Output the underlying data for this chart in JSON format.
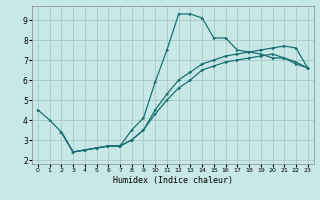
{
  "title": "",
  "xlabel": "Humidex (Indice chaleur)",
  "ylabel": "",
  "background_color": "#c8e8e8",
  "grid_color": "#a8c8c8",
  "line_color": "#1a7070",
  "xlim": [
    -0.5,
    23.5
  ],
  "ylim": [
    1.8,
    9.7
  ],
  "xticks": [
    0,
    1,
    2,
    3,
    4,
    5,
    6,
    7,
    8,
    9,
    10,
    11,
    12,
    13,
    14,
    15,
    16,
    17,
    18,
    19,
    20,
    21,
    22,
    23
  ],
  "yticks": [
    2,
    3,
    4,
    5,
    6,
    7,
    8,
    9
  ],
  "line1_x": [
    0,
    1,
    2,
    3,
    4,
    5,
    6,
    7,
    8,
    9,
    10,
    11,
    12,
    13,
    14,
    15,
    16,
    17,
    18,
    19,
    20,
    21,
    22,
    23
  ],
  "line1_y": [
    4.5,
    4.0,
    3.4,
    2.4,
    2.5,
    2.6,
    2.7,
    2.7,
    3.5,
    4.1,
    5.9,
    7.5,
    9.3,
    9.3,
    9.1,
    8.1,
    8.1,
    7.5,
    7.4,
    7.3,
    7.1,
    7.1,
    6.9,
    6.6
  ],
  "line2_x": [
    2,
    3,
    4,
    5,
    6,
    7,
    8,
    9,
    10,
    11,
    12,
    13,
    14,
    15,
    16,
    17,
    18,
    19,
    20,
    21,
    22,
    23
  ],
  "line2_y": [
    3.4,
    2.4,
    2.5,
    2.6,
    2.7,
    2.7,
    3.0,
    3.5,
    4.5,
    5.3,
    6.0,
    6.4,
    6.8,
    7.0,
    7.2,
    7.3,
    7.4,
    7.5,
    7.6,
    7.7,
    7.6,
    6.6
  ],
  "line3_x": [
    2,
    3,
    4,
    5,
    6,
    7,
    8,
    9,
    10,
    11,
    12,
    13,
    14,
    15,
    16,
    17,
    18,
    19,
    20,
    21,
    22,
    23
  ],
  "line3_y": [
    3.4,
    2.4,
    2.5,
    2.6,
    2.7,
    2.7,
    3.0,
    3.5,
    4.3,
    5.0,
    5.6,
    6.0,
    6.5,
    6.7,
    6.9,
    7.0,
    7.1,
    7.2,
    7.3,
    7.1,
    6.8,
    6.6
  ]
}
